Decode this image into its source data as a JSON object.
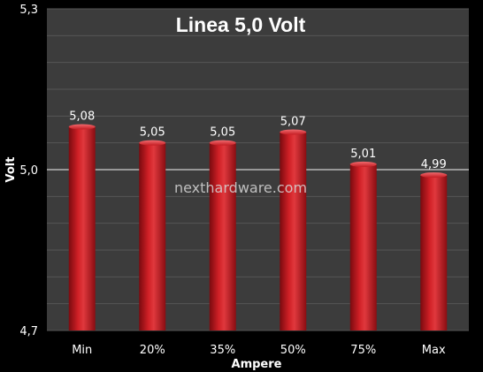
{
  "chart_data": {
    "type": "bar",
    "title": "Linea 5,0 Volt",
    "xlabel": "Ampere",
    "ylabel": "Volt",
    "categories": [
      "Min",
      "20%",
      "35%",
      "50%",
      "75%",
      "Max"
    ],
    "values": [
      5.08,
      5.05,
      5.05,
      5.07,
      5.01,
      4.99
    ],
    "value_labels": [
      "5,08",
      "5,05",
      "5,05",
      "5,07",
      "5,01",
      "4,99"
    ],
    "ylim": [
      4.7,
      5.3
    ],
    "yticks": [
      4.7,
      5.0,
      5.3
    ],
    "ytick_labels": [
      "4,7",
      "5,0",
      "5,3"
    ],
    "grid": true,
    "legend": "none",
    "watermark": "nexthardware.com",
    "colors": {
      "background": "#000000",
      "plot_area": "#3c3c3c",
      "bar": "#b0141a",
      "bar_highlight": "#e8474c",
      "bar_shadow": "#6e0a0e",
      "grid": "#565656",
      "axis_line": "#cfcfcf",
      "text": "#ffffff"
    }
  }
}
